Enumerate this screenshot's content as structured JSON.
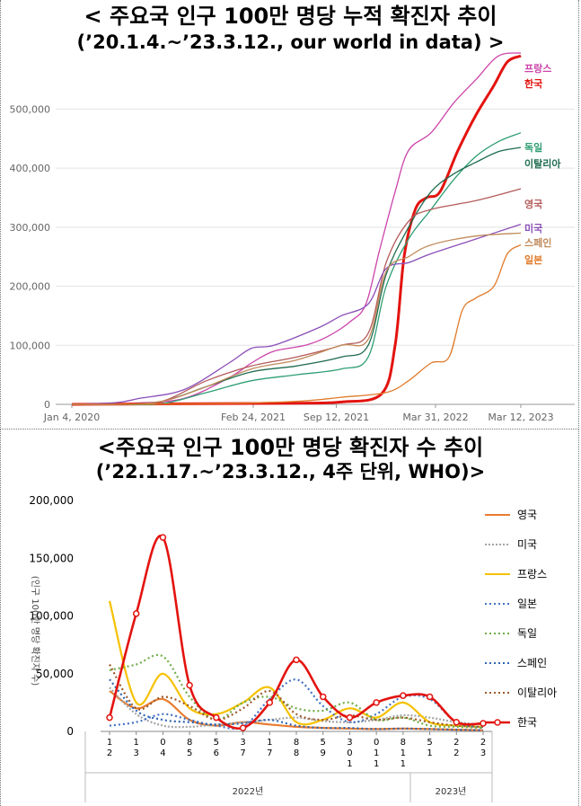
{
  "titles": {
    "top_line1": "< 주요국 인구 100만 명당 누적 확진자 추이",
    "top_line2": "(’20.1.4.~’23.3.12., our world in data) >",
    "bottom_line1": "<주요국 인구 100만 명당 확진자 수 추이",
    "bottom_line2": "(’22.1.17.~’23.3.12., 4주 단위, WHO)>"
  },
  "colors": {
    "france": "#cc44aa",
    "korea": "#e3130f",
    "germany": "#2f9e73",
    "italy": "#1e6b4f",
    "uk": "#b45a5a",
    "usa": "#8a4fb8",
    "spain": "#c08a5a",
    "japan": "#e07a2a",
    "b_uk": "#e97c30",
    "b_usa": "#a5a5a5",
    "b_france": "#f6c100",
    "b_japan": "#4472c4",
    "b_germany": "#70ad47",
    "b_spain": "#2e64b0",
    "b_italy": "#9c5a2a",
    "b_korea": "#e3130f"
  },
  "chart_data": [
    {
      "type": "line",
      "title": "< 주요국 인구 100만 명당 누적 확진자 추이",
      "subtitle": "(’20.1.4.~’23.3.12., our world in data) >",
      "x_tick_labels": [
        "Jan 4, 2020",
        "Feb 24, 2021",
        "Sep 12, 2021",
        "Mar 31, 2022",
        "Mar 12, 2023"
      ],
      "x_tick_positions": [
        0,
        0.404,
        0.589,
        0.81,
        1.0
      ],
      "y_tick_labels": [
        "0",
        "100,000",
        "200,000",
        "300,000",
        "400,000",
        "500,000"
      ],
      "ylim": [
        0,
        560000
      ],
      "grid": true,
      "legend_placement": "right-end-labels",
      "series": [
        {
          "name": "프랑스",
          "color_key": "france",
          "x": [
            0,
            0.05,
            0.14,
            0.25,
            0.35,
            0.4,
            0.45,
            0.52,
            0.57,
            0.62,
            0.655,
            0.685,
            0.72,
            0.75,
            0.8,
            0.85,
            0.9,
            0.95,
            1.0
          ],
          "values": [
            0,
            0,
            2000,
            10000,
            45000,
            70000,
            90000,
            100000,
            115000,
            140000,
            170000,
            260000,
            360000,
            430000,
            460000,
            510000,
            550000,
            590000,
            595000
          ]
        },
        {
          "name": "한국",
          "color_key": "korea",
          "x": [
            0,
            0.3,
            0.5,
            0.6,
            0.69,
            0.72,
            0.74,
            0.765,
            0.79,
            0.82,
            0.86,
            0.9,
            0.94,
            0.97,
            1.0
          ],
          "values": [
            0,
            1000,
            2000,
            4000,
            18000,
            100000,
            250000,
            330000,
            350000,
            360000,
            430000,
            490000,
            540000,
            580000,
            590000
          ]
        },
        {
          "name": "독일",
          "color_key": "germany",
          "x": [
            0,
            0.1,
            0.2,
            0.3,
            0.4,
            0.5,
            0.6,
            0.66,
            0.7,
            0.75,
            0.8,
            0.85,
            0.9,
            0.95,
            1.0
          ],
          "values": [
            0,
            0,
            1000,
            20000,
            40000,
            50000,
            60000,
            80000,
            200000,
            280000,
            330000,
            380000,
            420000,
            445000,
            460000
          ]
        },
        {
          "name": "이탈리아",
          "color_key": "italy",
          "x": [
            0,
            0.1,
            0.2,
            0.3,
            0.4,
            0.5,
            0.6,
            0.66,
            0.7,
            0.75,
            0.8,
            0.85,
            0.9,
            0.95,
            1.0
          ],
          "values": [
            0,
            0,
            5000,
            30000,
            55000,
            65000,
            80000,
            100000,
            220000,
            300000,
            360000,
            390000,
            410000,
            428000,
            435000
          ]
        },
        {
          "name": "영국",
          "color_key": "uk",
          "x": [
            0,
            0.1,
            0.2,
            0.3,
            0.4,
            0.5,
            0.6,
            0.66,
            0.7,
            0.75,
            0.8,
            0.9,
            1.0
          ],
          "values": [
            0,
            0,
            5000,
            40000,
            65000,
            80000,
            100000,
            120000,
            240000,
            310000,
            330000,
            345000,
            365000
          ]
        },
        {
          "name": "미국",
          "color_key": "usa",
          "x": [
            0,
            0.1,
            0.15,
            0.25,
            0.35,
            0.4,
            0.45,
            0.55,
            0.6,
            0.66,
            0.7,
            0.75,
            0.8,
            0.9,
            1.0
          ],
          "values": [
            0,
            3000,
            10000,
            25000,
            70000,
            95000,
            100000,
            130000,
            150000,
            170000,
            230000,
            240000,
            255000,
            280000,
            305000
          ]
        },
        {
          "name": "스페인",
          "color_key": "spain",
          "x": [
            0,
            0.1,
            0.2,
            0.3,
            0.4,
            0.5,
            0.6,
            0.66,
            0.7,
            0.75,
            0.8,
            0.9,
            1.0
          ],
          "values": [
            0,
            0,
            5000,
            30000,
            60000,
            75000,
            100000,
            110000,
            225000,
            250000,
            270000,
            285000,
            290000
          ]
        },
        {
          "name": "일본",
          "color_key": "japan",
          "x": [
            0,
            0.3,
            0.5,
            0.6,
            0.7,
            0.75,
            0.8,
            0.84,
            0.87,
            0.9,
            0.94,
            0.97,
            1.0
          ],
          "values": [
            0,
            1000,
            5000,
            12000,
            20000,
            40000,
            70000,
            80000,
            160000,
            180000,
            200000,
            255000,
            270000
          ]
        }
      ]
    },
    {
      "type": "line",
      "title": "<주요국 인구 100만 명당 확진자 수 추이",
      "subtitle": "(’22.1.17.~’23.3.12., 4주 단위, WHO)>",
      "categories": [
        [
          "1",
          "2"
        ],
        [
          "1",
          "3"
        ],
        [
          "0",
          "4"
        ],
        [
          "8",
          "5"
        ],
        [
          "5",
          "6"
        ],
        [
          "3",
          "7"
        ],
        [
          "1",
          "7"
        ],
        [
          "8",
          "8"
        ],
        [
          "5",
          "9"
        ],
        [
          "3",
          "0",
          "1"
        ],
        [
          "0",
          "1",
          "1"
        ],
        [
          "8",
          "1",
          "1"
        ],
        [
          "5",
          "1"
        ],
        [
          "2",
          "2"
        ],
        [
          "2",
          "3"
        ]
      ],
      "year_labels": [
        "2022년",
        "2023년"
      ],
      "y_tick_labels": [
        "0",
        "50,000",
        "100,000",
        "150,000",
        "200,000"
      ],
      "ylim": [
        0,
        200000
      ],
      "y_axis_label": "(인구 100만 명당 확진자 수)",
      "grid": false,
      "legend_placement": "right",
      "series": [
        {
          "name": "영국",
          "color_key": "b_uk",
          "values": [
            35000,
            20000,
            28000,
            10000,
            5000,
            8000,
            6000,
            4000,
            3000,
            2500,
            2000,
            2500,
            2000,
            1500,
            1000
          ]
        },
        {
          "name": "미국",
          "color_key": "b_usa",
          "values": [
            38000,
            15000,
            5000,
            4000,
            6000,
            8000,
            10000,
            12000,
            9000,
            8000,
            10000,
            14000,
            12000,
            8000,
            6000
          ]
        },
        {
          "name": "프랑스",
          "color_key": "b_france",
          "values": [
            113000,
            25000,
            50000,
            20000,
            15000,
            25000,
            38000,
            8000,
            10000,
            20000,
            12000,
            25000,
            8000,
            5000,
            4000
          ]
        },
        {
          "name": "일본",
          "color_key": "b_japan",
          "values": [
            5000,
            8000,
            15000,
            10000,
            5000,
            4000,
            28000,
            45000,
            22000,
            8000,
            15000,
            30000,
            28000,
            8000,
            3000
          ]
        },
        {
          "name": "독일",
          "color_key": "b_germany",
          "values": [
            53000,
            58000,
            65000,
            30000,
            10000,
            25000,
            30000,
            20000,
            18000,
            25000,
            10000,
            12000,
            5000,
            4000,
            3000
          ]
        },
        {
          "name": "스페인",
          "color_key": "b_spain",
          "values": [
            45000,
            18000,
            10000,
            8000,
            6000,
            7000,
            10000,
            5000,
            3000,
            3000,
            2000,
            2500,
            2000,
            1500,
            1000
          ]
        },
        {
          "name": "이탈리아",
          "color_key": "b_italy",
          "values": [
            58000,
            20000,
            30000,
            22000,
            10000,
            20000,
            35000,
            15000,
            10000,
            14000,
            10000,
            12000,
            8000,
            5000,
            4000
          ]
        },
        {
          "name": "한국",
          "color_key": "b_korea",
          "values": [
            12000,
            102000,
            168000,
            40000,
            12000,
            3000,
            25000,
            62000,
            30000,
            12000,
            25000,
            31000,
            30000,
            8000,
            7000
          ]
        }
      ]
    }
  ]
}
